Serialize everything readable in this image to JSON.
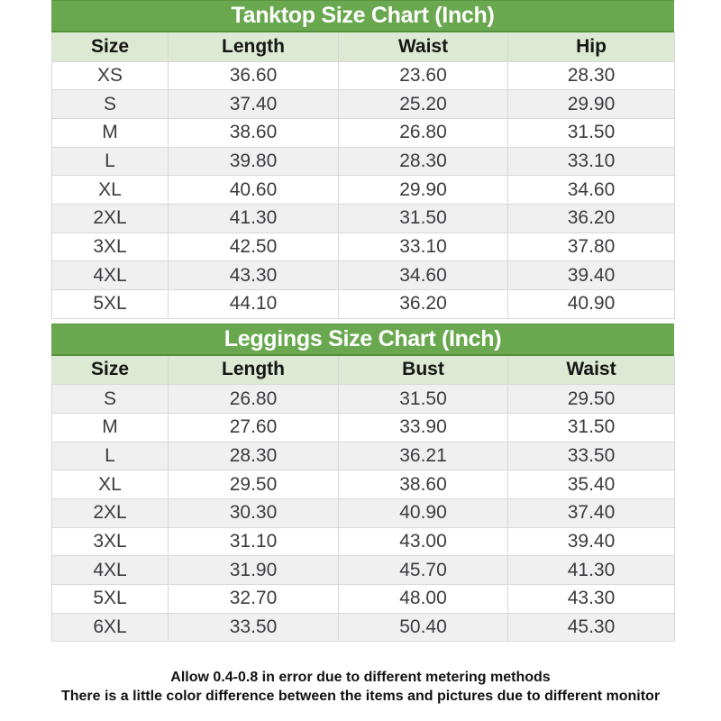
{
  "colors": {
    "title_bar_green": "#69a84f",
    "title_border_green": "#55913c",
    "header_row_light_green": "#dde9d3",
    "alt_row_gray": "#f0f0f0",
    "grid_line_gray": "#d8d8d8",
    "title_text": "#ffffff",
    "header_text": "#161616",
    "cell_text": "#3c3c40",
    "page_background": "#ffffff"
  },
  "tables": [
    {
      "title": "Tanktop Size Chart (Inch)",
      "columns": [
        "Size",
        "Length",
        "Waist",
        "Hip"
      ],
      "rows": [
        [
          "XS",
          "36.60",
          "23.60",
          "28.30"
        ],
        [
          "S",
          "37.40",
          "25.20",
          "29.90"
        ],
        [
          "M",
          "38.60",
          "26.80",
          "31.50"
        ],
        [
          "L",
          "39.80",
          "28.30",
          "33.10"
        ],
        [
          "XL",
          "40.60",
          "29.90",
          "34.60"
        ],
        [
          "2XL",
          "41.30",
          "31.50",
          "36.20"
        ],
        [
          "3XL",
          "42.50",
          "33.10",
          "37.80"
        ],
        [
          "4XL",
          "43.30",
          "34.60",
          "39.40"
        ],
        [
          "5XL",
          "44.10",
          "36.20",
          "40.90"
        ]
      ]
    },
    {
      "title": "Leggings Size Chart (Inch)",
      "columns": [
        "Size",
        "Length",
        "Bust",
        "Waist"
      ],
      "rows": [
        [
          "S",
          "26.80",
          "31.50",
          "29.50"
        ],
        [
          "M",
          "27.60",
          "33.90",
          "31.50"
        ],
        [
          "L",
          "28.30",
          "36.21",
          "33.50"
        ],
        [
          "XL",
          "29.50",
          "38.60",
          "35.40"
        ],
        [
          "2XL",
          "30.30",
          "40.90",
          "37.40"
        ],
        [
          "3XL",
          "31.10",
          "43.00",
          "39.40"
        ],
        [
          "4XL",
          "31.90",
          "45.70",
          "41.30"
        ],
        [
          "5XL",
          "32.70",
          "48.00",
          "43.30"
        ],
        [
          "6XL",
          "33.50",
          "50.40",
          "45.30"
        ]
      ]
    }
  ],
  "footer": {
    "line1": "Allow 0.4-0.8 in error due to different metering methods",
    "line2": "There is a little color difference between the items and pictures due to different monitor"
  }
}
